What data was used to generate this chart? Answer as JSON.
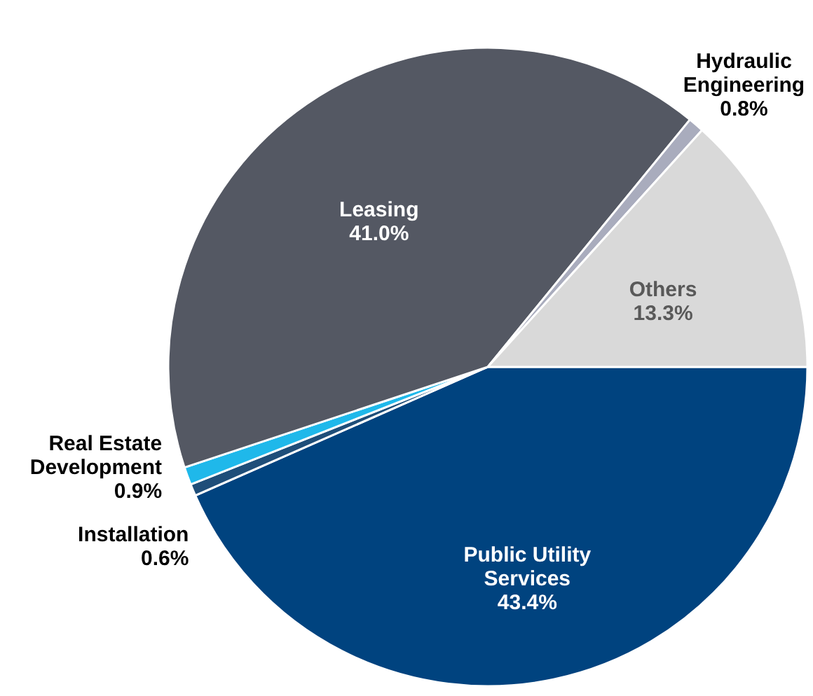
{
  "chart_data": {
    "type": "pie",
    "categories": [
      "Public Utility Services",
      "Installation",
      "Real Estate Development",
      "Leasing",
      "Hydraulic Engineering",
      "Others"
    ],
    "values": [
      43.4,
      0.6,
      0.9,
      41.0,
      0.8,
      13.3
    ],
    "value_labels": [
      "43.4%",
      "0.6%",
      "0.9%",
      "41.0%",
      "0.8%",
      "13.3%"
    ],
    "colors": [
      "#00437f",
      "#1f4e79",
      "#1fb8ea",
      "#545863",
      "#a9acbd",
      "#d9d9d9"
    ]
  }
}
